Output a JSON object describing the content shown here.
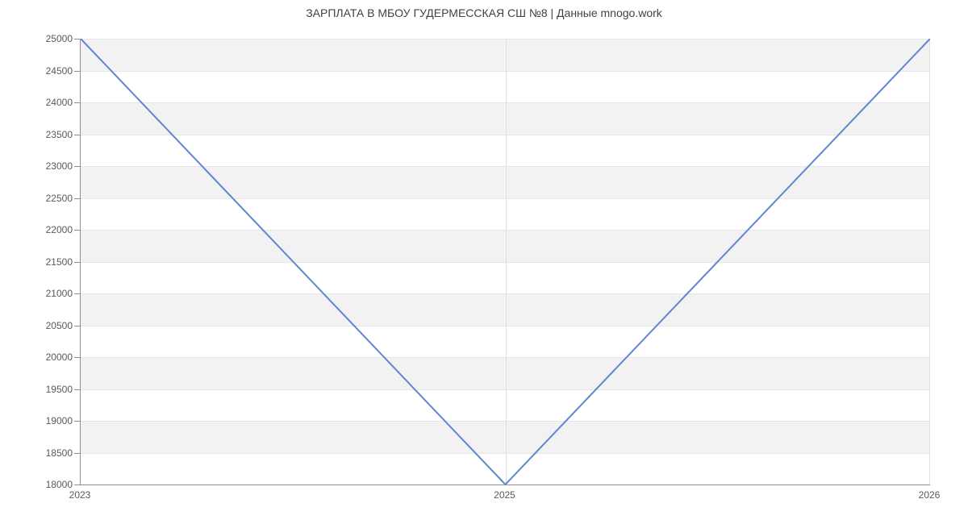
{
  "page": {
    "title": "ЗАРПЛАТА В МБОУ ГУДЕРМЕССКАЯ СШ №8 | Данные mnogo.work"
  },
  "chart_data": {
    "type": "line",
    "title": "ЗАРПЛАТА В МБОУ ГУДЕРМЕССКАЯ СШ №8 | Данные mnogo.work",
    "categories": [
      "2023",
      "2025",
      "2026"
    ],
    "values": [
      25000,
      18000,
      25000
    ],
    "xlabel": "",
    "ylabel": "",
    "ylim": [
      18000,
      25000
    ],
    "ytick_step": 500,
    "ytick_labels": [
      "18000",
      "18500",
      "19000",
      "19500",
      "20000",
      "20500",
      "21000",
      "21500",
      "22000",
      "22500",
      "23000",
      "23500",
      "24000",
      "24500",
      "25000"
    ],
    "x_spacing": "categorical-even",
    "grid": true,
    "legend_position": "none",
    "colors": {
      "line": "#6285d3",
      "band_alt": "#f2f2f2",
      "hgrid": "#e6e6e6",
      "vgrid": "#e0e0e0",
      "axis": "#8f8f8f",
      "tick_label": "#595959",
      "title": "#424242",
      "background": "#ffffff"
    }
  }
}
